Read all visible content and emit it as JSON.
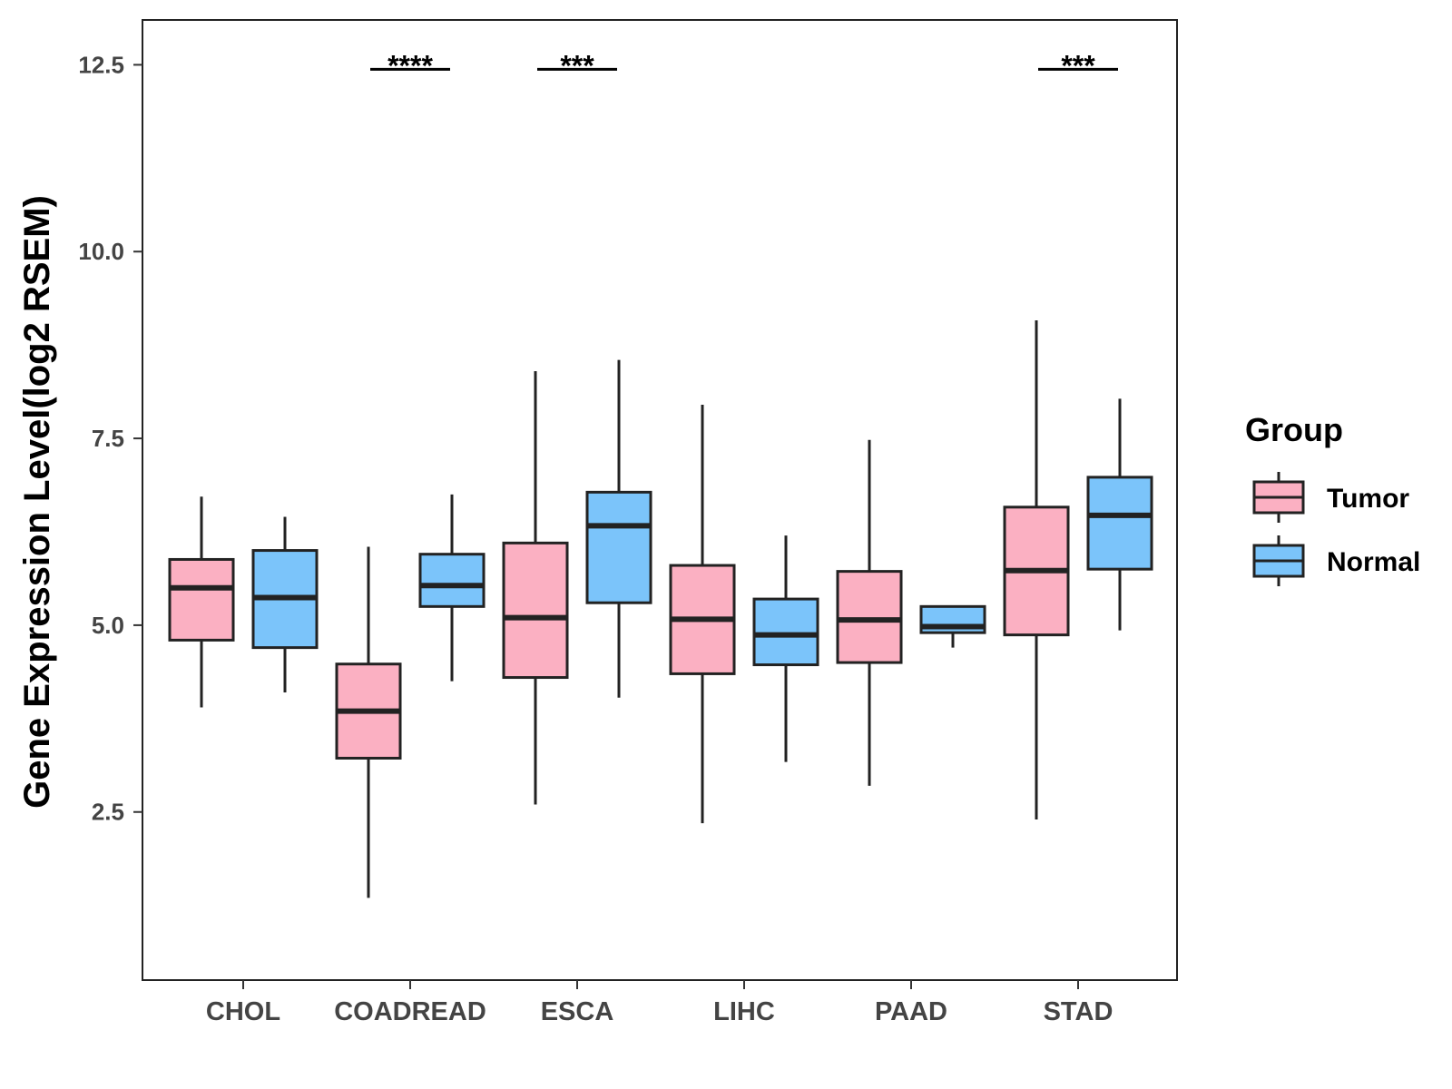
{
  "chart_data": {
    "type": "boxplot",
    "title": "",
    "xlabel": "",
    "ylabel": "Gene Expression Level(log2 RSEM)",
    "ylim": [
      0.25,
      13.1
    ],
    "yticks": [
      2.5,
      5.0,
      7.5,
      10.0,
      12.5
    ],
    "ytick_labels": [
      "2.5",
      "5.0",
      "7.5",
      "10.0",
      "12.5"
    ],
    "categories": [
      "CHOL",
      "COADREAD",
      "ESCA",
      "LIHC",
      "PAAD",
      "STAD"
    ],
    "legend": {
      "title": "Group",
      "position": "right",
      "entries": [
        "Tumor",
        "Normal"
      ]
    },
    "series": [
      {
        "name": "Tumor",
        "color": "#FBB0C2",
        "boxes": [
          {
            "min": 3.9,
            "q1": 4.8,
            "median": 5.5,
            "q3": 5.88,
            "max": 6.72
          },
          {
            "min": 1.35,
            "q1": 3.22,
            "median": 3.85,
            "q3": 4.48,
            "max": 6.05
          },
          {
            "min": 2.6,
            "q1": 4.3,
            "median": 5.1,
            "q3": 6.1,
            "max": 8.4
          },
          {
            "min": 2.35,
            "q1": 4.35,
            "median": 5.08,
            "q3": 5.8,
            "max": 7.95
          },
          {
            "min": 2.85,
            "q1": 4.5,
            "median": 5.07,
            "q3": 5.72,
            "max": 7.48
          },
          {
            "min": 2.4,
            "q1": 4.87,
            "median": 5.73,
            "q3": 6.58,
            "max": 9.08
          }
        ]
      },
      {
        "name": "Normal",
        "color": "#7BC4FA",
        "boxes": [
          {
            "min": 4.1,
            "q1": 4.7,
            "median": 5.37,
            "q3": 6.0,
            "max": 6.45
          },
          {
            "min": 4.25,
            "q1": 5.25,
            "median": 5.53,
            "q3": 5.95,
            "max": 6.75
          },
          {
            "min": 4.03,
            "q1": 5.3,
            "median": 6.33,
            "q3": 6.78,
            "max": 8.55
          },
          {
            "min": 3.17,
            "q1": 4.47,
            "median": 4.87,
            "q3": 5.35,
            "max": 6.2
          },
          {
            "min": 4.7,
            "q1": 4.9,
            "median": 4.98,
            "q3": 5.25,
            "max": 5.25
          },
          {
            "min": 4.93,
            "q1": 5.75,
            "median": 6.47,
            "q3": 6.98,
            "max": 8.03
          }
        ]
      }
    ],
    "annotations": [
      {
        "category": "COADREAD",
        "label": "****",
        "y": 12.5
      },
      {
        "category": "ESCA",
        "label": "***",
        "y": 12.5
      },
      {
        "category": "STAD",
        "label": "***",
        "y": 12.5
      }
    ]
  }
}
